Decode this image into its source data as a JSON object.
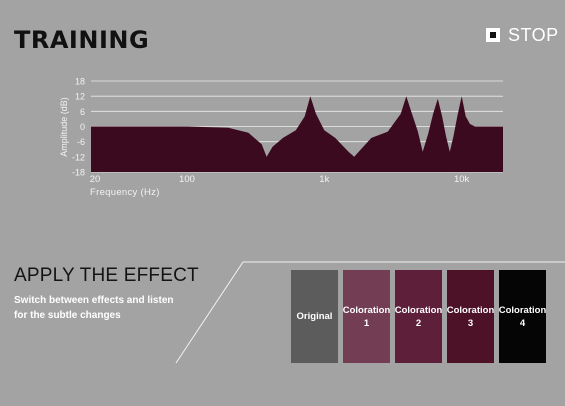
{
  "page": {
    "title": "TRAINING"
  },
  "stop_button": {
    "label": "STOP"
  },
  "chart_data": {
    "type": "area",
    "xlabel": "Frequency (Hz)",
    "ylabel": "Amplitude (dB)",
    "x_scale": "log",
    "xlim": [
      20,
      20000
    ],
    "ylim": [
      -18,
      18
    ],
    "x_ticks": [
      {
        "value": 20,
        "label": "20"
      },
      {
        "value": 100,
        "label": "100"
      },
      {
        "value": 1000,
        "label": "1k"
      },
      {
        "value": 10000,
        "label": "10k"
      }
    ],
    "y_ticks": [
      {
        "value": 18,
        "label": "18"
      },
      {
        "value": 12,
        "label": "12"
      },
      {
        "value": 6,
        "label": "6"
      },
      {
        "value": 0,
        "label": "0"
      },
      {
        "value": -6,
        "label": "-6"
      },
      {
        "value": -12,
        "label": "-12"
      },
      {
        "value": -18,
        "label": "-18"
      }
    ],
    "grid": true,
    "fill_color": "#3c0a1e",
    "points": [
      {
        "x": 20,
        "y": 0
      },
      {
        "x": 100,
        "y": 0
      },
      {
        "x": 200,
        "y": -0.5
      },
      {
        "x": 280,
        "y": -2.5
      },
      {
        "x": 350,
        "y": -7
      },
      {
        "x": 380,
        "y": -12
      },
      {
        "x": 420,
        "y": -8
      },
      {
        "x": 500,
        "y": -4.5
      },
      {
        "x": 620,
        "y": -1.5
      },
      {
        "x": 720,
        "y": 4
      },
      {
        "x": 790,
        "y": 12
      },
      {
        "x": 870,
        "y": 5
      },
      {
        "x": 1000,
        "y": -1.5
      },
      {
        "x": 1200,
        "y": -4.5
      },
      {
        "x": 1500,
        "y": -10
      },
      {
        "x": 1650,
        "y": -12
      },
      {
        "x": 1850,
        "y": -9
      },
      {
        "x": 2200,
        "y": -4.5
      },
      {
        "x": 2900,
        "y": -2
      },
      {
        "x": 3600,
        "y": 5
      },
      {
        "x": 3950,
        "y": 12
      },
      {
        "x": 4350,
        "y": 5
      },
      {
        "x": 4800,
        "y": -2
      },
      {
        "x": 5200,
        "y": -10
      },
      {
        "x": 5700,
        "y": -3
      },
      {
        "x": 6200,
        "y": 5
      },
      {
        "x": 6700,
        "y": 11
      },
      {
        "x": 7200,
        "y": 4
      },
      {
        "x": 7700,
        "y": -4
      },
      {
        "x": 8200,
        "y": -10
      },
      {
        "x": 8700,
        "y": -4
      },
      {
        "x": 9300,
        "y": 4
      },
      {
        "x": 10000,
        "y": 12
      },
      {
        "x": 10700,
        "y": 4
      },
      {
        "x": 11500,
        "y": 1
      },
      {
        "x": 12500,
        "y": 0
      },
      {
        "x": 20000,
        "y": 0
      }
    ]
  },
  "apply_section": {
    "title": "APPLY THE EFFECT",
    "description": "Switch between effects and listen for the subtle changes"
  },
  "effects": [
    {
      "label": "Original",
      "color": "#5c5c5c"
    },
    {
      "label": "Coloration\n1",
      "color": "#733d53"
    },
    {
      "label": "Coloration\n2",
      "color": "#5e1f3a"
    },
    {
      "label": "Coloration\n3",
      "color": "#4d1128"
    },
    {
      "label": "Coloration\n4",
      "color": "#050505"
    }
  ]
}
